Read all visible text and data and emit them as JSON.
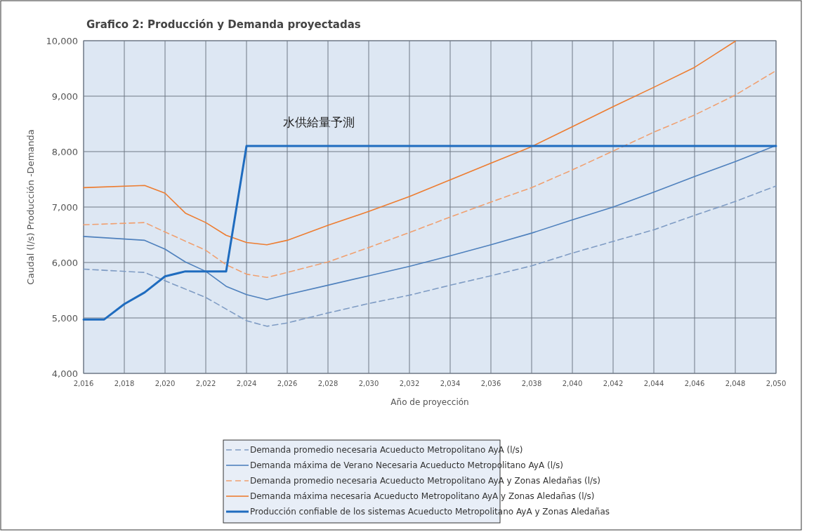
{
  "chart_data": {
    "type": "line",
    "title": "Grafico 2:  Producción y Demanda proyectadas",
    "xlabel": "Año de proyección",
    "ylabel": "Caudal (l/s) Producción -Demanda",
    "xlim": [
      2016,
      2050
    ],
    "ylim": [
      4000,
      10000
    ],
    "xticks": [
      {
        "value": 2016,
        "label": "2,016"
      },
      {
        "value": 2018,
        "label": "2,018"
      },
      {
        "value": 2020,
        "label": "2,020"
      },
      {
        "value": 2022,
        "label": "2,022"
      },
      {
        "value": 2024,
        "label": "2,024"
      },
      {
        "value": 2026,
        "label": "2,026"
      },
      {
        "value": 2028,
        "label": "2,028"
      },
      {
        "value": 2030,
        "label": "2,030"
      },
      {
        "value": 2032,
        "label": "2,032"
      },
      {
        "value": 2034,
        "label": "2,034"
      },
      {
        "value": 2036,
        "label": "2,036"
      },
      {
        "value": 2038,
        "label": "2,038"
      },
      {
        "value": 2040,
        "label": "2,040"
      },
      {
        "value": 2042,
        "label": "2,042"
      },
      {
        "value": 2044,
        "label": "2,044"
      },
      {
        "value": 2046,
        "label": "2,046"
      },
      {
        "value": 2048,
        "label": "2,048"
      },
      {
        "value": 2050,
        "label": "2,050"
      }
    ],
    "yticks": [
      {
        "value": 4000,
        "label": "4,000"
      },
      {
        "value": 5000,
        "label": "5,000"
      },
      {
        "value": 6000,
        "label": "6,000"
      },
      {
        "value": 7000,
        "label": "7,000"
      },
      {
        "value": 8000,
        "label": "8,000"
      },
      {
        "value": 9000,
        "label": "9,000"
      },
      {
        "value": 10000,
        "label": "10,000"
      }
    ],
    "grid": true,
    "legend": "bottom",
    "marker": "none",
    "annotations": [
      "水供給量予測"
    ],
    "series": [
      {
        "name": "Demanda promedio necesaria  Acueducto Metropolitano AyA (l/s)",
        "color": "#7f9cc4",
        "line_style": "dashed",
        "x": [
          2016,
          2019,
          2020,
          2022,
          2023,
          2024,
          2025,
          2026,
          2028,
          2030,
          2032,
          2034,
          2036,
          2038,
          2040,
          2042,
          2044,
          2046,
          2048,
          2050
        ],
        "values": [
          5880,
          5820,
          5670,
          5370,
          5160,
          4950,
          4850,
          4910,
          5090,
          5260,
          5410,
          5590,
          5760,
          5940,
          6170,
          6380,
          6590,
          6850,
          7100,
          7380
        ]
      },
      {
        "name": "Demanda máxima  de Verano Necesaria Acueducto Metropolitano AyA (l/s)",
        "color": "#4f81bd",
        "line_style": "solid",
        "x": [
          2016,
          2019,
          2020,
          2021,
          2022,
          2023,
          2024,
          2025,
          2026,
          2028,
          2030,
          2032,
          2034,
          2036,
          2038,
          2040,
          2042,
          2044,
          2046,
          2048,
          2050
        ],
        "values": [
          6470,
          6400,
          6240,
          6010,
          5840,
          5570,
          5420,
          5330,
          5420,
          5590,
          5760,
          5930,
          6120,
          6320,
          6530,
          6770,
          7000,
          7270,
          7550,
          7820,
          8110
        ]
      },
      {
        "name": "Demanda promedio necesaria  Acueducto Metropolitano AyA  y Zonas Aledañas (l/s)",
        "color": "#f0a070",
        "line_style": "dashed",
        "x": [
          2016,
          2019,
          2020,
          2022,
          2023,
          2024,
          2025,
          2026,
          2028,
          2030,
          2032,
          2034,
          2036,
          2038,
          2040,
          2042,
          2044,
          2046,
          2048,
          2050
        ],
        "values": [
          6680,
          6720,
          6550,
          6220,
          5960,
          5790,
          5730,
          5820,
          6010,
          6270,
          6540,
          6820,
          7090,
          7350,
          7670,
          8010,
          8350,
          8660,
          9020,
          9460
        ]
      },
      {
        "name": "Demanda máxima necesaria Acueducto Metropolitano AyA y Zonas Aledañas (l/s)",
        "color": "#ed7d31",
        "line_style": "solid",
        "x": [
          2016,
          2019,
          2020,
          2021,
          2022,
          2023,
          2024,
          2025,
          2026,
          2028,
          2030,
          2032,
          2034,
          2036,
          2038,
          2040,
          2042,
          2044,
          2046,
          2048
        ],
        "values": [
          7350,
          7390,
          7250,
          6890,
          6720,
          6490,
          6360,
          6320,
          6400,
          6670,
          6920,
          7190,
          7490,
          7790,
          8090,
          8450,
          8810,
          9160,
          9520,
          9990
        ]
      },
      {
        "name": "Producción confiable de los sistemas Acueducto Metropolitano AyA y Zonas Aledañas",
        "color": "#1f6cbf",
        "line_style": "solid",
        "x": [
          2016,
          2017,
          2018,
          2019,
          2020,
          2021,
          2022,
          2023,
          2024,
          2050
        ],
        "values": [
          4970,
          4970,
          5250,
          5460,
          5750,
          5840,
          5840,
          5840,
          8100,
          8100
        ]
      }
    ]
  }
}
